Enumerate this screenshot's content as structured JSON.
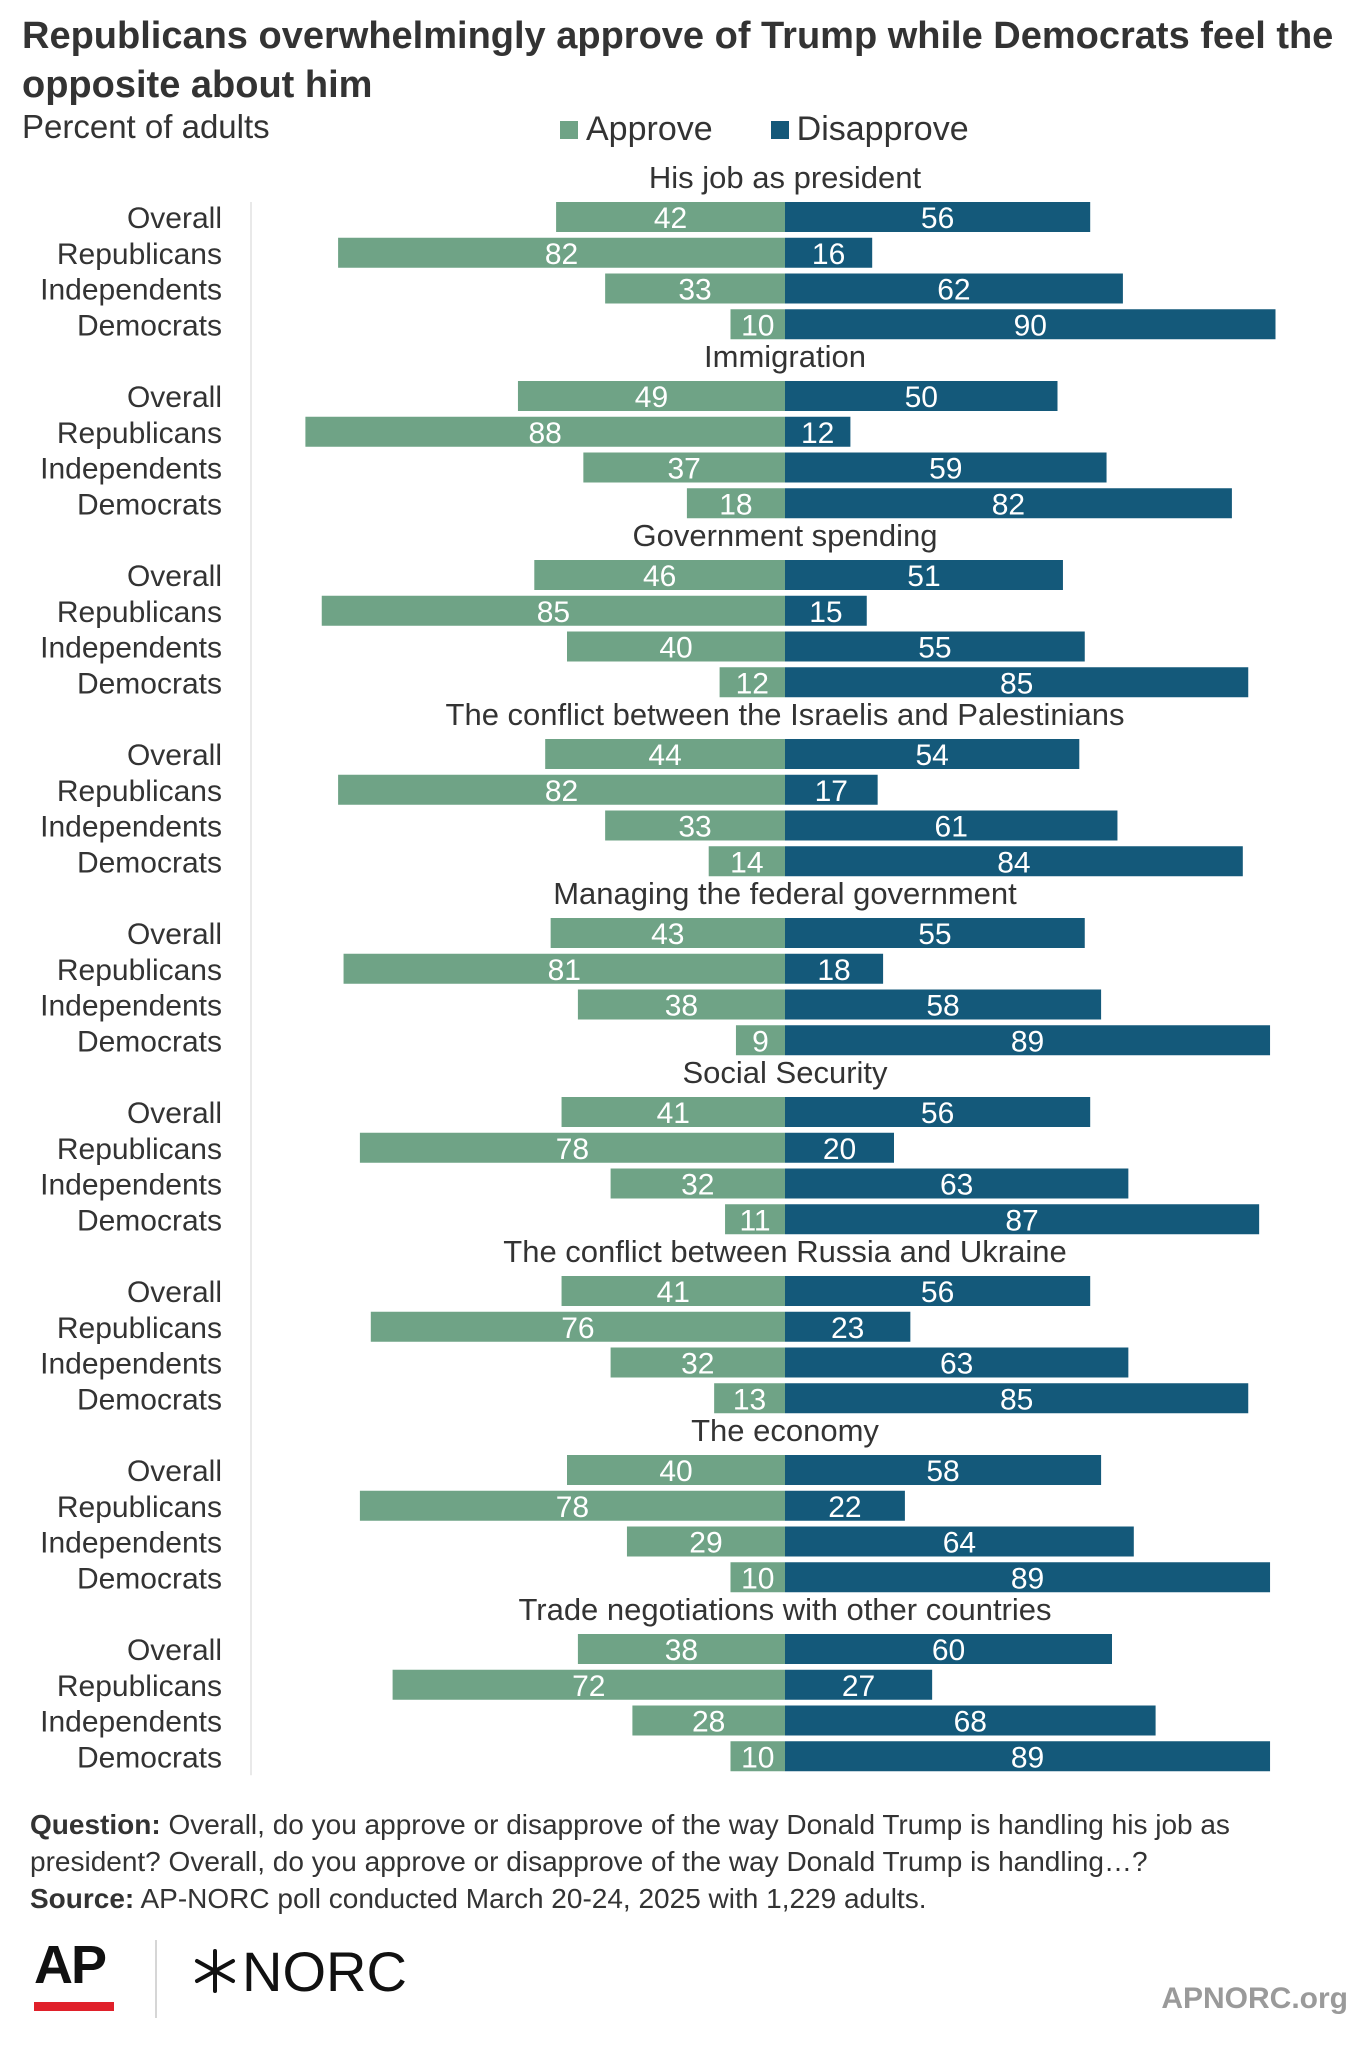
{
  "chart_data": {
    "type": "bar",
    "orientation": "horizontal",
    "stacking": "diverging",
    "title": "Republicans overwhelmingly approve of Trump while Democrats feel the opposite about him",
    "subtitle": "Percent of adults",
    "legend_position": "top",
    "legend": [
      {
        "name": "Approve",
        "color": "#6fa386"
      },
      {
        "name": "Disapprove",
        "color": "#14597a"
      }
    ],
    "categories": [
      "Overall",
      "Republicans",
      "Independents",
      "Democrats"
    ],
    "xlim": [
      -100,
      100
    ],
    "grid": false,
    "groups": [
      {
        "name": "His job as president",
        "approve": [
          42,
          82,
          33,
          10
        ],
        "disapprove": [
          56,
          16,
          62,
          90
        ]
      },
      {
        "name": "Immigration",
        "approve": [
          49,
          88,
          37,
          18
        ],
        "disapprove": [
          50,
          12,
          59,
          82
        ]
      },
      {
        "name": "Government spending",
        "approve": [
          46,
          85,
          40,
          12
        ],
        "disapprove": [
          51,
          15,
          55,
          85
        ]
      },
      {
        "name": "The conflict between the Israelis and Palestinians",
        "approve": [
          44,
          82,
          33,
          14
        ],
        "disapprove": [
          54,
          17,
          61,
          84
        ]
      },
      {
        "name": "Managing the federal government",
        "approve": [
          43,
          81,
          38,
          9
        ],
        "disapprove": [
          55,
          18,
          58,
          89
        ]
      },
      {
        "name": "Social Security",
        "approve": [
          41,
          78,
          32,
          11
        ],
        "disapprove": [
          56,
          20,
          63,
          87
        ]
      },
      {
        "name": "The conflict between Russia and Ukraine",
        "approve": [
          41,
          76,
          32,
          13
        ],
        "disapprove": [
          56,
          23,
          63,
          85
        ]
      },
      {
        "name": "The economy",
        "approve": [
          40,
          78,
          29,
          10
        ],
        "disapprove": [
          58,
          22,
          64,
          89
        ]
      },
      {
        "name": "Trade negotiations with other countries",
        "approve": [
          38,
          72,
          28,
          10
        ],
        "disapprove": [
          60,
          27,
          68,
          89
        ]
      }
    ]
  },
  "notes": {
    "question_label": "Question:",
    "question_text": " Overall, do you approve or disapprove of the way Donald Trump is handling his job as president? Overall, do you approve or disapprove of the way Donald Trump is handling…?",
    "source_label": "Source:",
    "source_text": " AP-NORC poll conducted March 20-24, 2025 with 1,229 adults."
  },
  "footer": {
    "ap_logo_text": "AP",
    "norc_logo_text": "NORC",
    "site": "APNORC.org"
  }
}
